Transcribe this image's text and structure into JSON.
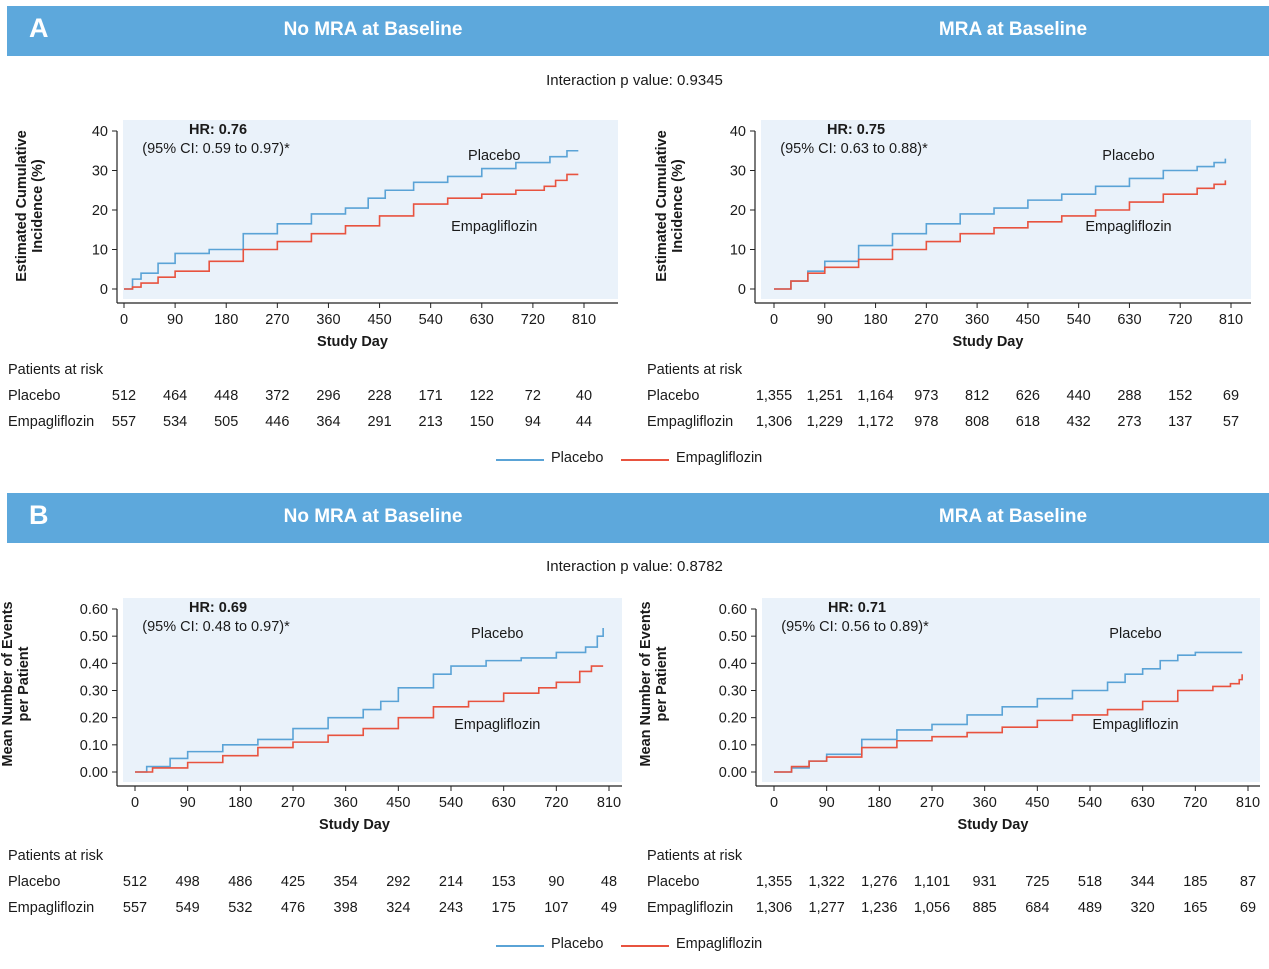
{
  "colors": {
    "band": "#5da8dc",
    "plot_bg": "#eaf2fa",
    "placebo": "#5aa3d6",
    "empagliflozin": "#e8533f"
  },
  "panels": [
    {
      "letter": "A",
      "left_title": "No MRA at Baseline",
      "right_title": "MRA at Baseline",
      "interaction": "Interaction p value: 0.9345",
      "legend": {
        "placebo": "Placebo",
        "empagliflozin": "Empagliflozin"
      },
      "left_table": {
        "title": "Patients at risk",
        "rows": [
          {
            "label": "Placebo",
            "values": [
              "512",
              "464",
              "448",
              "372",
              "296",
              "228",
              "171",
              "122",
              "72",
              "40"
            ]
          },
          {
            "label": "Empagliflozin",
            "values": [
              "557",
              "534",
              "505",
              "446",
              "364",
              "291",
              "213",
              "150",
              "94",
              "44"
            ]
          }
        ]
      },
      "right_table": {
        "title": "Patients at risk",
        "rows": [
          {
            "label": "Placebo",
            "values": [
              "1,355",
              "1,251",
              "1,164",
              "973",
              "812",
              "626",
              "440",
              "288",
              "152",
              "69"
            ]
          },
          {
            "label": "Empagliflozin",
            "values": [
              "1,306",
              "1,229",
              "1,172",
              "978",
              "808",
              "618",
              "432",
              "273",
              "137",
              "57"
            ]
          }
        ]
      }
    },
    {
      "letter": "B",
      "left_title": "No MRA at Baseline",
      "right_title": "MRA at Baseline",
      "interaction": "Interaction p value: 0.8782",
      "legend": {
        "placebo": "Placebo",
        "empagliflozin": "Empagliflozin"
      },
      "left_table": {
        "title": "Patients at risk",
        "rows": [
          {
            "label": "Placebo",
            "values": [
              "512",
              "498",
              "486",
              "425",
              "354",
              "292",
              "214",
              "153",
              "90",
              "48"
            ]
          },
          {
            "label": "Empagliflozin",
            "values": [
              "557",
              "549",
              "532",
              "476",
              "398",
              "324",
              "243",
              "175",
              "107",
              "49"
            ]
          }
        ]
      },
      "right_table": {
        "title": "Patients at risk",
        "rows": [
          {
            "label": "Placebo",
            "values": [
              "1,355",
              "1,322",
              "1,276",
              "1,101",
              "931",
              "725",
              "518",
              "344",
              "185",
              "87"
            ]
          },
          {
            "label": "Empagliflozin",
            "values": [
              "1,306",
              "1,277",
              "1,236",
              "1,056",
              "885",
              "684",
              "489",
              "320",
              "165",
              "69"
            ]
          }
        ]
      }
    }
  ],
  "chart_data": [
    {
      "type": "line",
      "step": true,
      "xlabel": "Study Day",
      "ylabel": "Estimated Cumulative Incidence (%)",
      "xlim": [
        0,
        810
      ],
      "ylim": [
        0,
        40
      ],
      "xticks": [
        "0",
        "90",
        "180",
        "270",
        "360",
        "450",
        "540",
        "630",
        "720",
        "810"
      ],
      "yticks": [
        "0",
        "10",
        "20",
        "30",
        "40"
      ],
      "hr_bold": "HR: 0.76",
      "ci": "(95% CI: 0.59 to 0.97)*",
      "series": [
        {
          "name": "Placebo",
          "label": "Placebo",
          "x": [
            0,
            15,
            30,
            60,
            90,
            150,
            210,
            270,
            330,
            390,
            430,
            460,
            510,
            570,
            630,
            690,
            750,
            780,
            800
          ],
          "y": [
            0,
            2.5,
            4,
            6.5,
            9,
            10,
            14,
            16.5,
            19,
            20.5,
            23,
            25,
            27,
            28.5,
            30.5,
            32,
            33.5,
            35,
            35
          ]
        },
        {
          "name": "Empagliflozin",
          "label": "Empagliflozin",
          "x": [
            0,
            15,
            30,
            60,
            90,
            150,
            210,
            270,
            330,
            390,
            450,
            510,
            570,
            630,
            690,
            740,
            760,
            780,
            800
          ],
          "y": [
            0,
            0.5,
            1.5,
            3,
            4.5,
            7,
            10,
            12,
            14,
            16,
            18.5,
            21.5,
            23,
            24,
            25,
            26,
            27.5,
            29,
            29
          ]
        }
      ]
    },
    {
      "type": "line",
      "step": true,
      "xlabel": "Study Day",
      "ylabel": "Estimated Cumulative Incidence (%)",
      "xlim": [
        0,
        810
      ],
      "ylim": [
        0,
        40
      ],
      "xticks": [
        "0",
        "90",
        "180",
        "270",
        "360",
        "450",
        "540",
        "630",
        "720",
        "810"
      ],
      "yticks": [
        "0",
        "10",
        "20",
        "30",
        "40"
      ],
      "hr_bold": "HR: 0.75",
      "ci": "(95% CI: 0.63 to 0.88)*",
      "series": [
        {
          "name": "Placebo",
          "label": "Placebo",
          "x": [
            0,
            30,
            60,
            90,
            150,
            210,
            270,
            330,
            390,
            450,
            510,
            570,
            630,
            690,
            750,
            780,
            800
          ],
          "y": [
            0,
            2,
            4.5,
            7,
            11,
            14,
            16.5,
            19,
            20.5,
            22.5,
            24,
            26,
            28,
            30,
            31,
            32,
            33
          ]
        },
        {
          "name": "Empagliflozin",
          "label": "Empagliflozin",
          "x": [
            0,
            30,
            60,
            90,
            150,
            210,
            270,
            330,
            390,
            450,
            510,
            570,
            630,
            690,
            750,
            780,
            800
          ],
          "y": [
            0,
            2,
            4,
            5.5,
            7.5,
            10,
            12,
            14,
            15.5,
            17,
            18.5,
            20,
            22,
            24,
            25.5,
            26.5,
            27.5
          ]
        }
      ]
    },
    {
      "type": "line",
      "step": true,
      "xlabel": "Study Day",
      "ylabel": "Mean Number of Events per Patient",
      "xlim": [
        0,
        810
      ],
      "ylim": [
        0,
        0.6
      ],
      "xticks": [
        "0",
        "90",
        "180",
        "270",
        "360",
        "450",
        "540",
        "630",
        "720",
        "810"
      ],
      "yticks": [
        "0.00",
        "0.10",
        "0.20",
        "0.30",
        "0.40",
        "0.50",
        "0.60"
      ],
      "hr_bold": "HR: 0.69",
      "ci": "(95% CI: 0.48 to 0.97)*",
      "series": [
        {
          "name": "Placebo",
          "label": "Placebo",
          "x": [
            0,
            20,
            60,
            90,
            150,
            210,
            270,
            330,
            390,
            420,
            450,
            510,
            540,
            600,
            660,
            720,
            750,
            770,
            790,
            800
          ],
          "y": [
            0,
            0.02,
            0.05,
            0.075,
            0.1,
            0.12,
            0.16,
            0.2,
            0.23,
            0.26,
            0.31,
            0.36,
            0.39,
            0.41,
            0.42,
            0.44,
            0.44,
            0.46,
            0.5,
            0.53
          ]
        },
        {
          "name": "Empagliflozin",
          "label": "Empagliflozin",
          "x": [
            0,
            30,
            90,
            150,
            210,
            270,
            330,
            390,
            450,
            510,
            570,
            630,
            690,
            720,
            760,
            780,
            800
          ],
          "y": [
            0,
            0.015,
            0.035,
            0.06,
            0.09,
            0.11,
            0.135,
            0.16,
            0.2,
            0.24,
            0.26,
            0.29,
            0.31,
            0.33,
            0.37,
            0.39,
            0.39
          ]
        }
      ]
    },
    {
      "type": "line",
      "step": true,
      "xlabel": "Study Day",
      "ylabel": "Mean Number of Events per Patient",
      "xlim": [
        0,
        810
      ],
      "ylim": [
        0,
        0.6
      ],
      "xticks": [
        "0",
        "90",
        "180",
        "270",
        "360",
        "450",
        "540",
        "630",
        "720",
        "810"
      ],
      "yticks": [
        "0.00",
        "0.10",
        "0.20",
        "0.30",
        "0.40",
        "0.50",
        "0.60"
      ],
      "hr_bold": "HR: 0.71",
      "ci": "(95% CI: 0.56 to 0.89)*",
      "series": [
        {
          "name": "Placebo",
          "label": "Placebo",
          "x": [
            0,
            30,
            60,
            90,
            150,
            210,
            270,
            330,
            390,
            450,
            510,
            570,
            600,
            630,
            660,
            690,
            720,
            800
          ],
          "y": [
            0,
            0.015,
            0.04,
            0.065,
            0.12,
            0.155,
            0.175,
            0.21,
            0.24,
            0.27,
            0.3,
            0.33,
            0.36,
            0.38,
            0.41,
            0.43,
            0.44,
            0.44
          ]
        },
        {
          "name": "Empagliflozin",
          "label": "Empagliflozin",
          "x": [
            0,
            30,
            60,
            90,
            150,
            210,
            270,
            330,
            390,
            450,
            510,
            570,
            630,
            690,
            750,
            780,
            795,
            800
          ],
          "y": [
            0,
            0.02,
            0.04,
            0.055,
            0.09,
            0.115,
            0.13,
            0.145,
            0.165,
            0.19,
            0.21,
            0.23,
            0.26,
            0.3,
            0.315,
            0.325,
            0.34,
            0.36
          ]
        }
      ]
    }
  ]
}
